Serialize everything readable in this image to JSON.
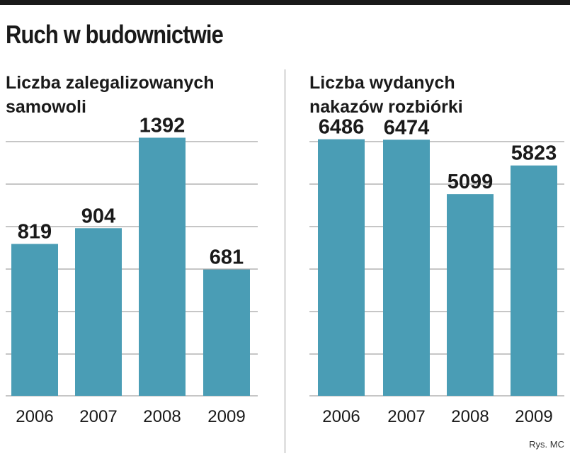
{
  "title": "Ruch w budownictwie",
  "credit": "Rys. MC",
  "bar_color": "#4a9db5",
  "chart_data": [
    {
      "type": "bar",
      "title": "Liczba zalegalizowanych samowoli",
      "title_lines": [
        "Liczba zalegalizowanych",
        "samowoli"
      ],
      "categories": [
        "2006",
        "2007",
        "2008",
        "2009"
      ],
      "values": [
        819,
        904,
        1392,
        681
      ],
      "value_labels": [
        "819",
        "904",
        "1392",
        "681"
      ],
      "ylim": [
        0,
        1600
      ],
      "grid": true
    },
    {
      "type": "bar",
      "title": "Liczba wydanych nakazów rozbiórki",
      "title_lines": [
        "Liczba wydanych",
        "nakazów rozbiórki"
      ],
      "categories": [
        "2006",
        "2007",
        "2008",
        "2009"
      ],
      "values": [
        6486,
        6474,
        5099,
        5823
      ],
      "value_labels": [
        "6486",
        "6474",
        "5099",
        "5823"
      ],
      "ylim": [
        0,
        7500
      ],
      "grid": true
    }
  ]
}
